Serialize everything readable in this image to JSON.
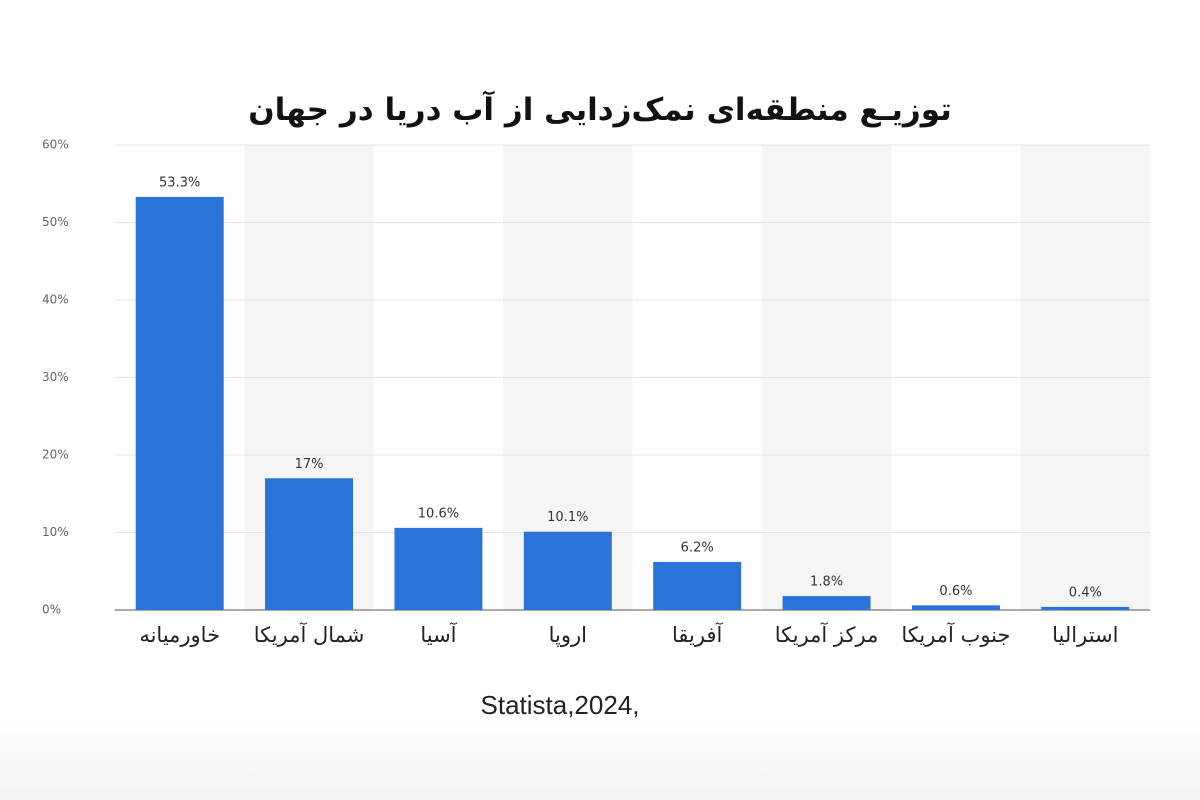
{
  "chart_data": {
    "type": "bar",
    "title": "توزیـع منطقه‌ای نمک‌زدایی از آب دریا در جهان",
    "source": "Statista,2024,",
    "categories": [
      "خاورمیانه",
      "شمال آمریکا",
      "آسیا",
      "اروپا",
      "آفریقا",
      "مرکز آمریکا",
      "جنوب آمریکا",
      "استرالیا"
    ],
    "values": [
      53.3,
      17,
      10.6,
      10.1,
      6.2,
      1.8,
      0.6,
      0.4
    ],
    "value_labels": [
      "53.3%",
      "17%",
      "10.6%",
      "10.1%",
      "6.2%",
      "1.8%",
      "0.6%",
      "0.4%"
    ],
    "color": "#2a73d9",
    "ylim": [
      0,
      60
    ],
    "yticks": [
      {
        "value": 0,
        "label": "0%"
      },
      {
        "value": 10,
        "label": "10%"
      },
      {
        "value": 20,
        "label": "20%"
      },
      {
        "value": 30,
        "label": "30%"
      },
      {
        "value": 40,
        "label": "40%"
      },
      {
        "value": 50,
        "label": "50%"
      },
      {
        "value": 60,
        "label": "60%"
      }
    ],
    "grid": true
  }
}
